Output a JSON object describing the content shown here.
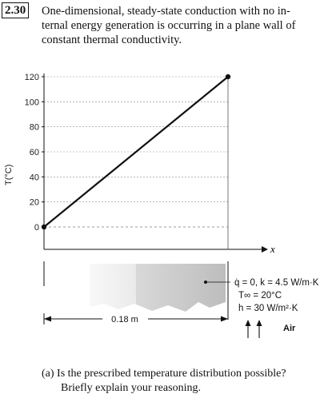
{
  "problem": {
    "number": "2.30",
    "statement_lines": [
      "One-dimensional, steady-state conduction with no in-",
      "ternal energy generation is occurring in a plane wall of",
      "constant thermal conductivity."
    ]
  },
  "chart_data": {
    "type": "line",
    "ylabel": "T(°C)",
    "xlabel": "x",
    "ylim": [
      0,
      120
    ],
    "y_ticks": [
      "0",
      "20",
      "40",
      "60",
      "80",
      "100",
      "120"
    ],
    "grid": "dashed horizontal",
    "series": [
      {
        "x": [
          0,
          0.18
        ],
        "y": [
          0,
          120
        ]
      }
    ]
  },
  "wall": {
    "thickness_label": "0.18 m",
    "props_line1": "q̇ = 0, k = 4.5 W/m·K",
    "props_line2": "T∞ = 20°C",
    "props_line3": "h = 30 W/m²·K",
    "fluid_label": "Air"
  },
  "question": {
    "part_a_line1": "(a) Is the prescribed temperature distribution possible?",
    "part_a_line2": "Briefly explain your reasoning."
  }
}
